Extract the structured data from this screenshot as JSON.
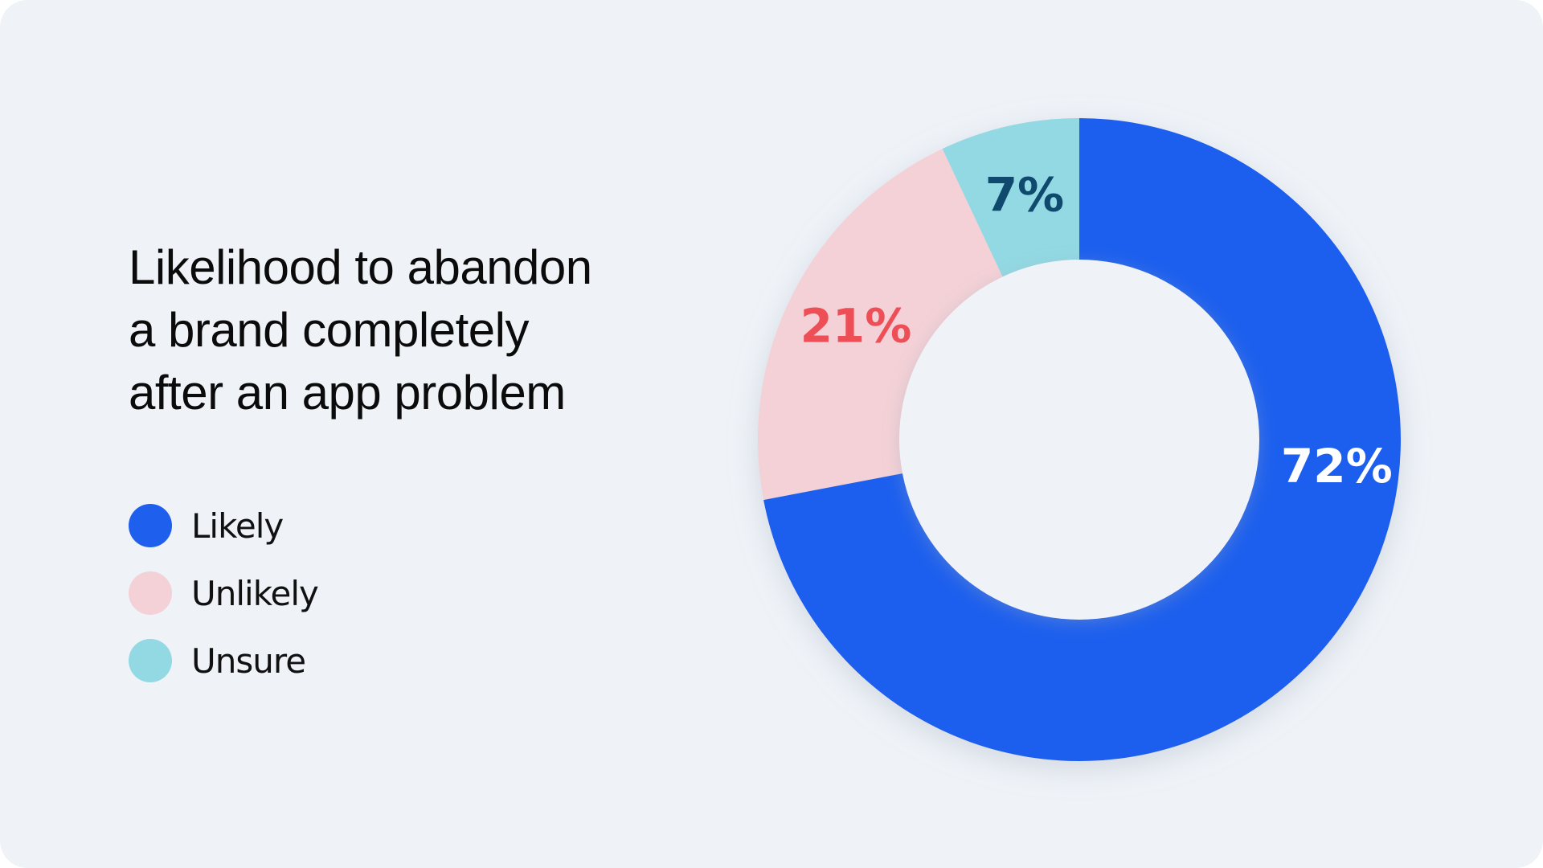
{
  "chart_data": {
    "type": "pie",
    "variant": "donut",
    "title": "Likelihood to abandon a brand completely after an app problem",
    "title_lines": [
      "Likelihood to abandon",
      "a brand completely",
      "after an app problem"
    ],
    "categories": [
      "Likely",
      "Unlikely",
      "Unsure"
    ],
    "values": [
      72,
      21,
      7
    ],
    "data_labels": [
      "72%",
      "21%",
      "7%"
    ],
    "colors": [
      "#1f5fee",
      "#f3d1d6",
      "#92d9e3"
    ],
    "label_colors": [
      "#ffffff",
      "#ee4e55",
      "#0f4a6e"
    ],
    "legend_position": "left"
  },
  "background_color": "#eff3f8"
}
